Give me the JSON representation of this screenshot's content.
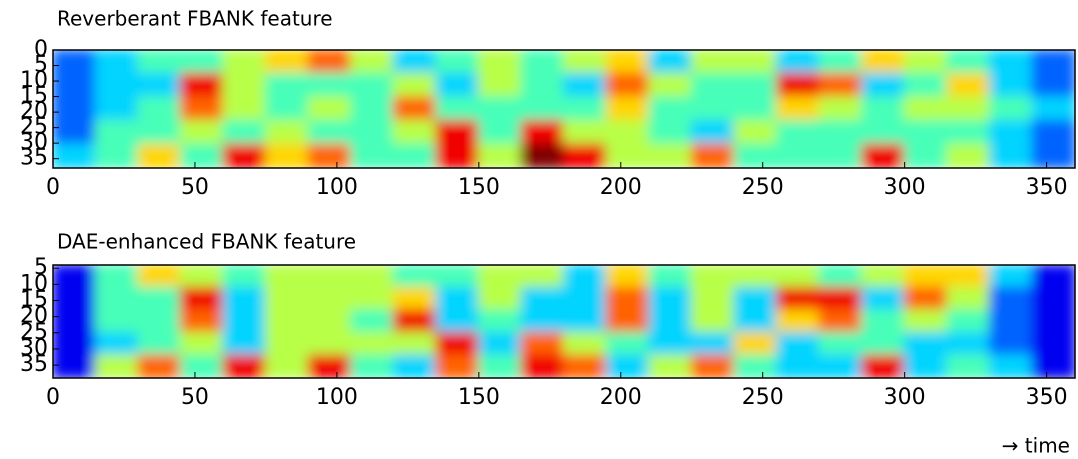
{
  "chart_data": [
    {
      "type": "heatmap",
      "title": "Reverberant FBANK feature",
      "colormap": "jet",
      "xlim": [
        0,
        360
      ],
      "ylim": [
        0,
        38
      ],
      "zlim": [
        0,
        9
      ],
      "xticks": [
        0,
        50,
        100,
        150,
        200,
        250,
        300,
        350
      ],
      "yticks": [
        0,
        5,
        10,
        15,
        20,
        25,
        30,
        35
      ],
      "z": [
        [
          2,
          3,
          4,
          4,
          5,
          6,
          7,
          5,
          3,
          4,
          5,
          4,
          5,
          6,
          3,
          5,
          5,
          3,
          4,
          6,
          5,
          4,
          3,
          2
        ],
        [
          2,
          3,
          3,
          8,
          5,
          4,
          4,
          4,
          5,
          3,
          5,
          4,
          3,
          7,
          5,
          4,
          4,
          8,
          7,
          3,
          4,
          6,
          3,
          2
        ],
        [
          2,
          3,
          4,
          7,
          5,
          4,
          5,
          4,
          7,
          4,
          4,
          4,
          4,
          6,
          4,
          4,
          4,
          6,
          5,
          4,
          5,
          5,
          4,
          3
        ],
        [
          2,
          4,
          4,
          5,
          4,
          5,
          4,
          4,
          5,
          8,
          4,
          8,
          5,
          5,
          4,
          3,
          5,
          4,
          4,
          4,
          4,
          4,
          3,
          2
        ],
        [
          3,
          4,
          6,
          4,
          8,
          6,
          7,
          4,
          4,
          8,
          5,
          9,
          8,
          5,
          5,
          7,
          4,
          4,
          4,
          8,
          4,
          5,
          3,
          2
        ]
      ]
    },
    {
      "type": "heatmap",
      "title": "DAE-enhanced FBANK feature",
      "colormap": "jet",
      "xlim": [
        0,
        360
      ],
      "ylim": [
        4,
        39
      ],
      "zlim": [
        0,
        9
      ],
      "xticks": [
        0,
        50,
        100,
        150,
        200,
        250,
        300,
        350
      ],
      "yticks": [
        5,
        10,
        15,
        20,
        25,
        30,
        35
      ],
      "annotation": "→ time",
      "z": [
        [
          1,
          4,
          6,
          5,
          4,
          5,
          5,
          5,
          4,
          4,
          5,
          5,
          3,
          6,
          4,
          5,
          5,
          5,
          4,
          5,
          6,
          6,
          3,
          1
        ],
        [
          1,
          4,
          4,
          8,
          3,
          5,
          5,
          5,
          6,
          3,
          5,
          3,
          3,
          7,
          3,
          5,
          3,
          8,
          8,
          3,
          7,
          5,
          2,
          1
        ],
        [
          1,
          4,
          4,
          7,
          3,
          5,
          5,
          4,
          8,
          3,
          4,
          3,
          3,
          7,
          3,
          5,
          3,
          6,
          7,
          4,
          5,
          4,
          2,
          1
        ],
        [
          1,
          3,
          4,
          5,
          3,
          5,
          5,
          5,
          5,
          8,
          3,
          7,
          5,
          4,
          3,
          3,
          6,
          3,
          4,
          4,
          3,
          3,
          2,
          1
        ],
        [
          1,
          5,
          7,
          4,
          8,
          5,
          8,
          4,
          3,
          7,
          4,
          8,
          7,
          3,
          5,
          7,
          4,
          3,
          3,
          8,
          3,
          4,
          3,
          1
        ]
      ]
    }
  ]
}
